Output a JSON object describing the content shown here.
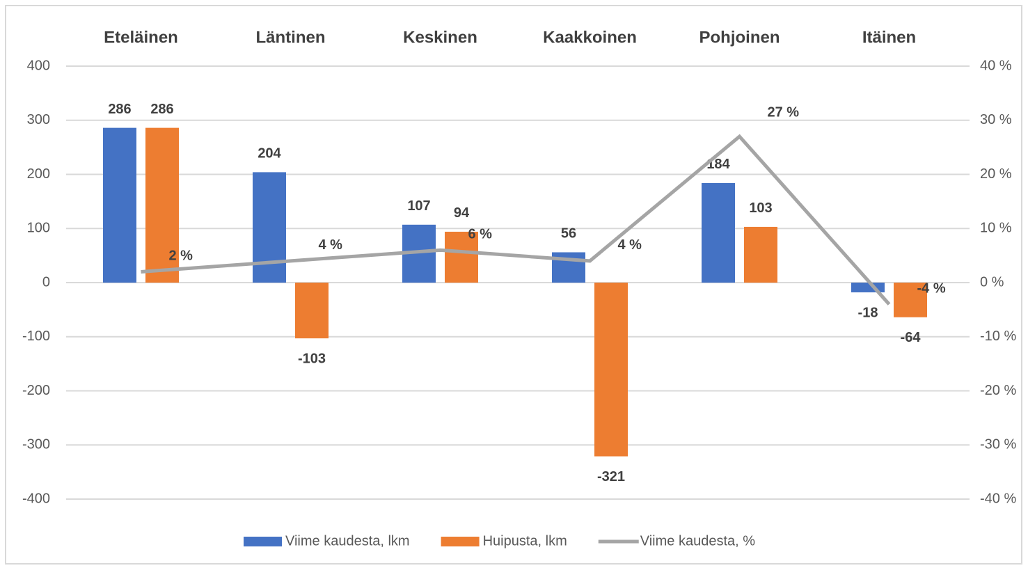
{
  "chart_data": {
    "type": "bar",
    "categories": [
      "Eteläinen",
      "Läntinen",
      "Keskinen",
      "Kaakkoinen",
      "Pohjoinen",
      "Itäinen"
    ],
    "series": [
      {
        "name": "Viime kaudesta, lkm",
        "color": "#4472c4",
        "values": [
          286,
          204,
          107,
          56,
          184,
          -18
        ]
      },
      {
        "name": "Huipusta, lkm",
        "color": "#ed7d31",
        "values": [
          286,
          -103,
          94,
          -321,
          103,
          -64
        ]
      },
      {
        "name": "Viime kaudesta, %",
        "color": "#a5a5a5",
        "type": "line",
        "axis": "y2",
        "values": [
          2,
          4,
          6,
          4,
          27,
          -4
        ],
        "value_labels": [
          "2 %",
          "4 %",
          "6 %",
          "4 %",
          "27 %",
          "-4 %"
        ]
      }
    ],
    "ylim": [
      -400,
      400
    ],
    "yticks": [
      -400,
      -300,
      -200,
      -100,
      0,
      100,
      200,
      300,
      400
    ],
    "y2lim": [
      -40,
      40
    ],
    "y2ticks": [
      {
        "value": -40,
        "label": "-40 %"
      },
      {
        "value": -30,
        "label": "-30 %"
      },
      {
        "value": -20,
        "label": "-20 %"
      },
      {
        "value": -10,
        "label": "-10 %"
      },
      {
        "value": 0,
        "label": "0 %"
      },
      {
        "value": 10,
        "label": "10 %"
      },
      {
        "value": 20,
        "label": "20 %"
      },
      {
        "value": 30,
        "label": "30 %"
      },
      {
        "value": 40,
        "label": "40 %"
      }
    ],
    "grid": true,
    "legend": "bottom"
  }
}
